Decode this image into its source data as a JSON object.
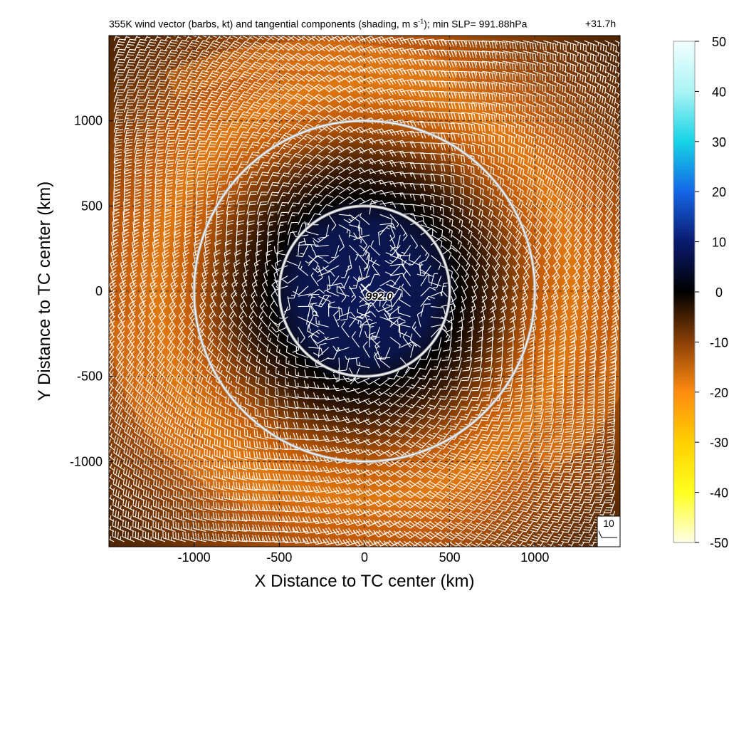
{
  "chart_data": {
    "type": "heatmap",
    "title_prefix": "355K wind vector (barbs, kt) and tangential components (shading, m s",
    "title_sup": "-1",
    "title_suffix": "); min SLP= 991.88hPa",
    "time_label": "+31.7h",
    "xlabel": "X Distance to TC center (km)",
    "ylabel": "Y Distance to TC center (km)",
    "xlim": [
      -1500,
      1500
    ],
    "ylim": [
      -1500,
      1500
    ],
    "xticks": [
      -1000,
      -500,
      0,
      500,
      1000
    ],
    "yticks": [
      -1000,
      -500,
      0,
      500,
      1000
    ],
    "xtick_labels": [
      "-1000",
      "-500",
      "0",
      "500",
      "1000"
    ],
    "ytick_labels": [
      "-1000",
      "-500",
      "0",
      "500",
      "1000"
    ],
    "grid": true,
    "center_label": "992.0",
    "reference_barb_label": "10",
    "range_circles_km": [
      500,
      1000
    ],
    "colorbar": {
      "min": -50,
      "max": 50,
      "ticks": [
        50,
        40,
        30,
        20,
        10,
        0,
        -10,
        -20,
        -30,
        -40,
        -50
      ],
      "tick_labels": [
        "50",
        "40",
        "30",
        "20",
        "10",
        "0",
        "-10",
        "-20",
        "-30",
        "-40",
        "-50"
      ]
    },
    "field": {
      "description_values": "tangential wind component, m s-1",
      "inner_region_value": 3,
      "ring_peak_value": -15,
      "ring_peak_radius_km": 1050,
      "outer_edge_value": -8
    }
  }
}
